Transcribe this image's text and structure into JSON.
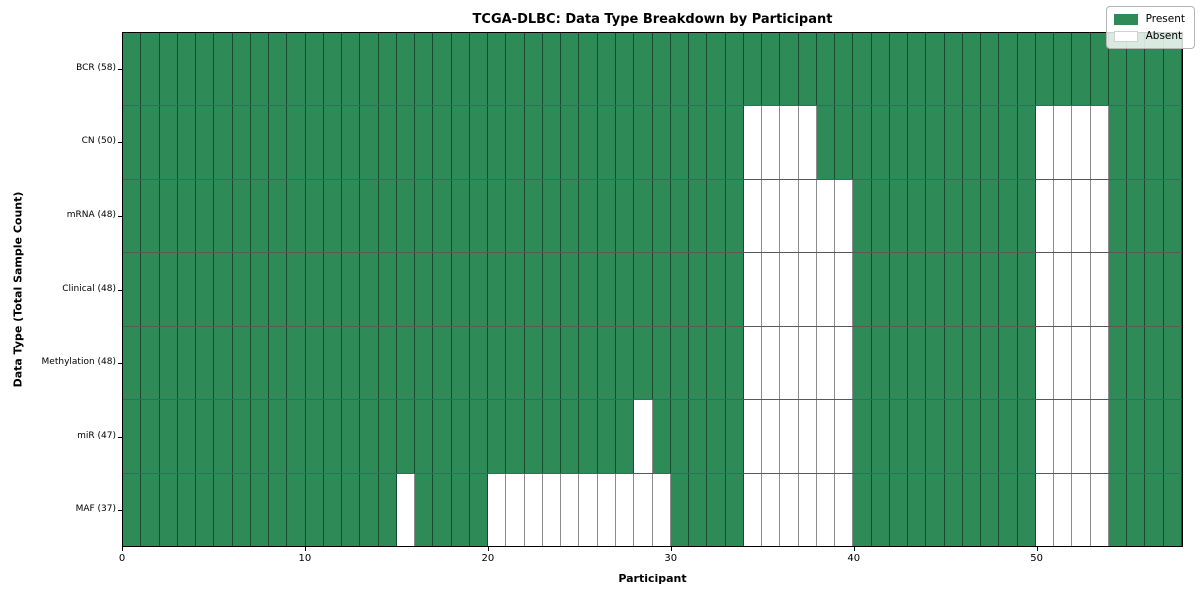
{
  "chart_data": {
    "type": "heatmap",
    "title": "TCGA-DLBC: Data Type Breakdown by Participant",
    "xlabel": "Participant",
    "ylabel": "Data Type (Total Sample Count)",
    "n_participants": 58,
    "x_range": [
      0,
      58
    ],
    "x_ticks": [
      0,
      10,
      20,
      30,
      40,
      50
    ],
    "legend": [
      {
        "label": "Present",
        "key": "present"
      },
      {
        "label": "Absent",
        "key": "absent"
      }
    ],
    "legend_position": "upper right",
    "grid": "cell-borders",
    "colors": {
      "present": "#2e8b57",
      "absent": "#ffffff",
      "cell_border": "rgba(0,0,0,0.45)",
      "row_border": "rgba(0,0,0,0.65)",
      "frame": "#000000"
    },
    "rows": [
      {
        "label": "BCR (58)",
        "present_total": 58,
        "absent_participants": []
      },
      {
        "label": "CN (50)",
        "present_total": 50,
        "absent_participants": [
          34,
          35,
          36,
          37,
          50,
          51,
          52,
          53
        ]
      },
      {
        "label": "mRNA (48)",
        "present_total": 48,
        "absent_participants": [
          34,
          35,
          36,
          37,
          38,
          39,
          50,
          51,
          52,
          53
        ]
      },
      {
        "label": "Clinical (48)",
        "present_total": 48,
        "absent_participants": [
          34,
          35,
          36,
          37,
          38,
          39,
          50,
          51,
          52,
          53
        ]
      },
      {
        "label": "Methylation (48)",
        "present_total": 48,
        "absent_participants": [
          34,
          35,
          36,
          37,
          38,
          39,
          50,
          51,
          52,
          53
        ]
      },
      {
        "label": "miR (47)",
        "present_total": 47,
        "absent_participants": [
          28,
          34,
          35,
          36,
          37,
          38,
          39,
          50,
          51,
          52,
          53
        ]
      },
      {
        "label": "MAF (37)",
        "present_total": 37,
        "absent_participants": [
          15,
          20,
          21,
          22,
          23,
          24,
          25,
          26,
          27,
          28,
          29,
          34,
          35,
          36,
          37,
          38,
          39,
          50,
          51,
          52,
          53
        ]
      }
    ]
  }
}
